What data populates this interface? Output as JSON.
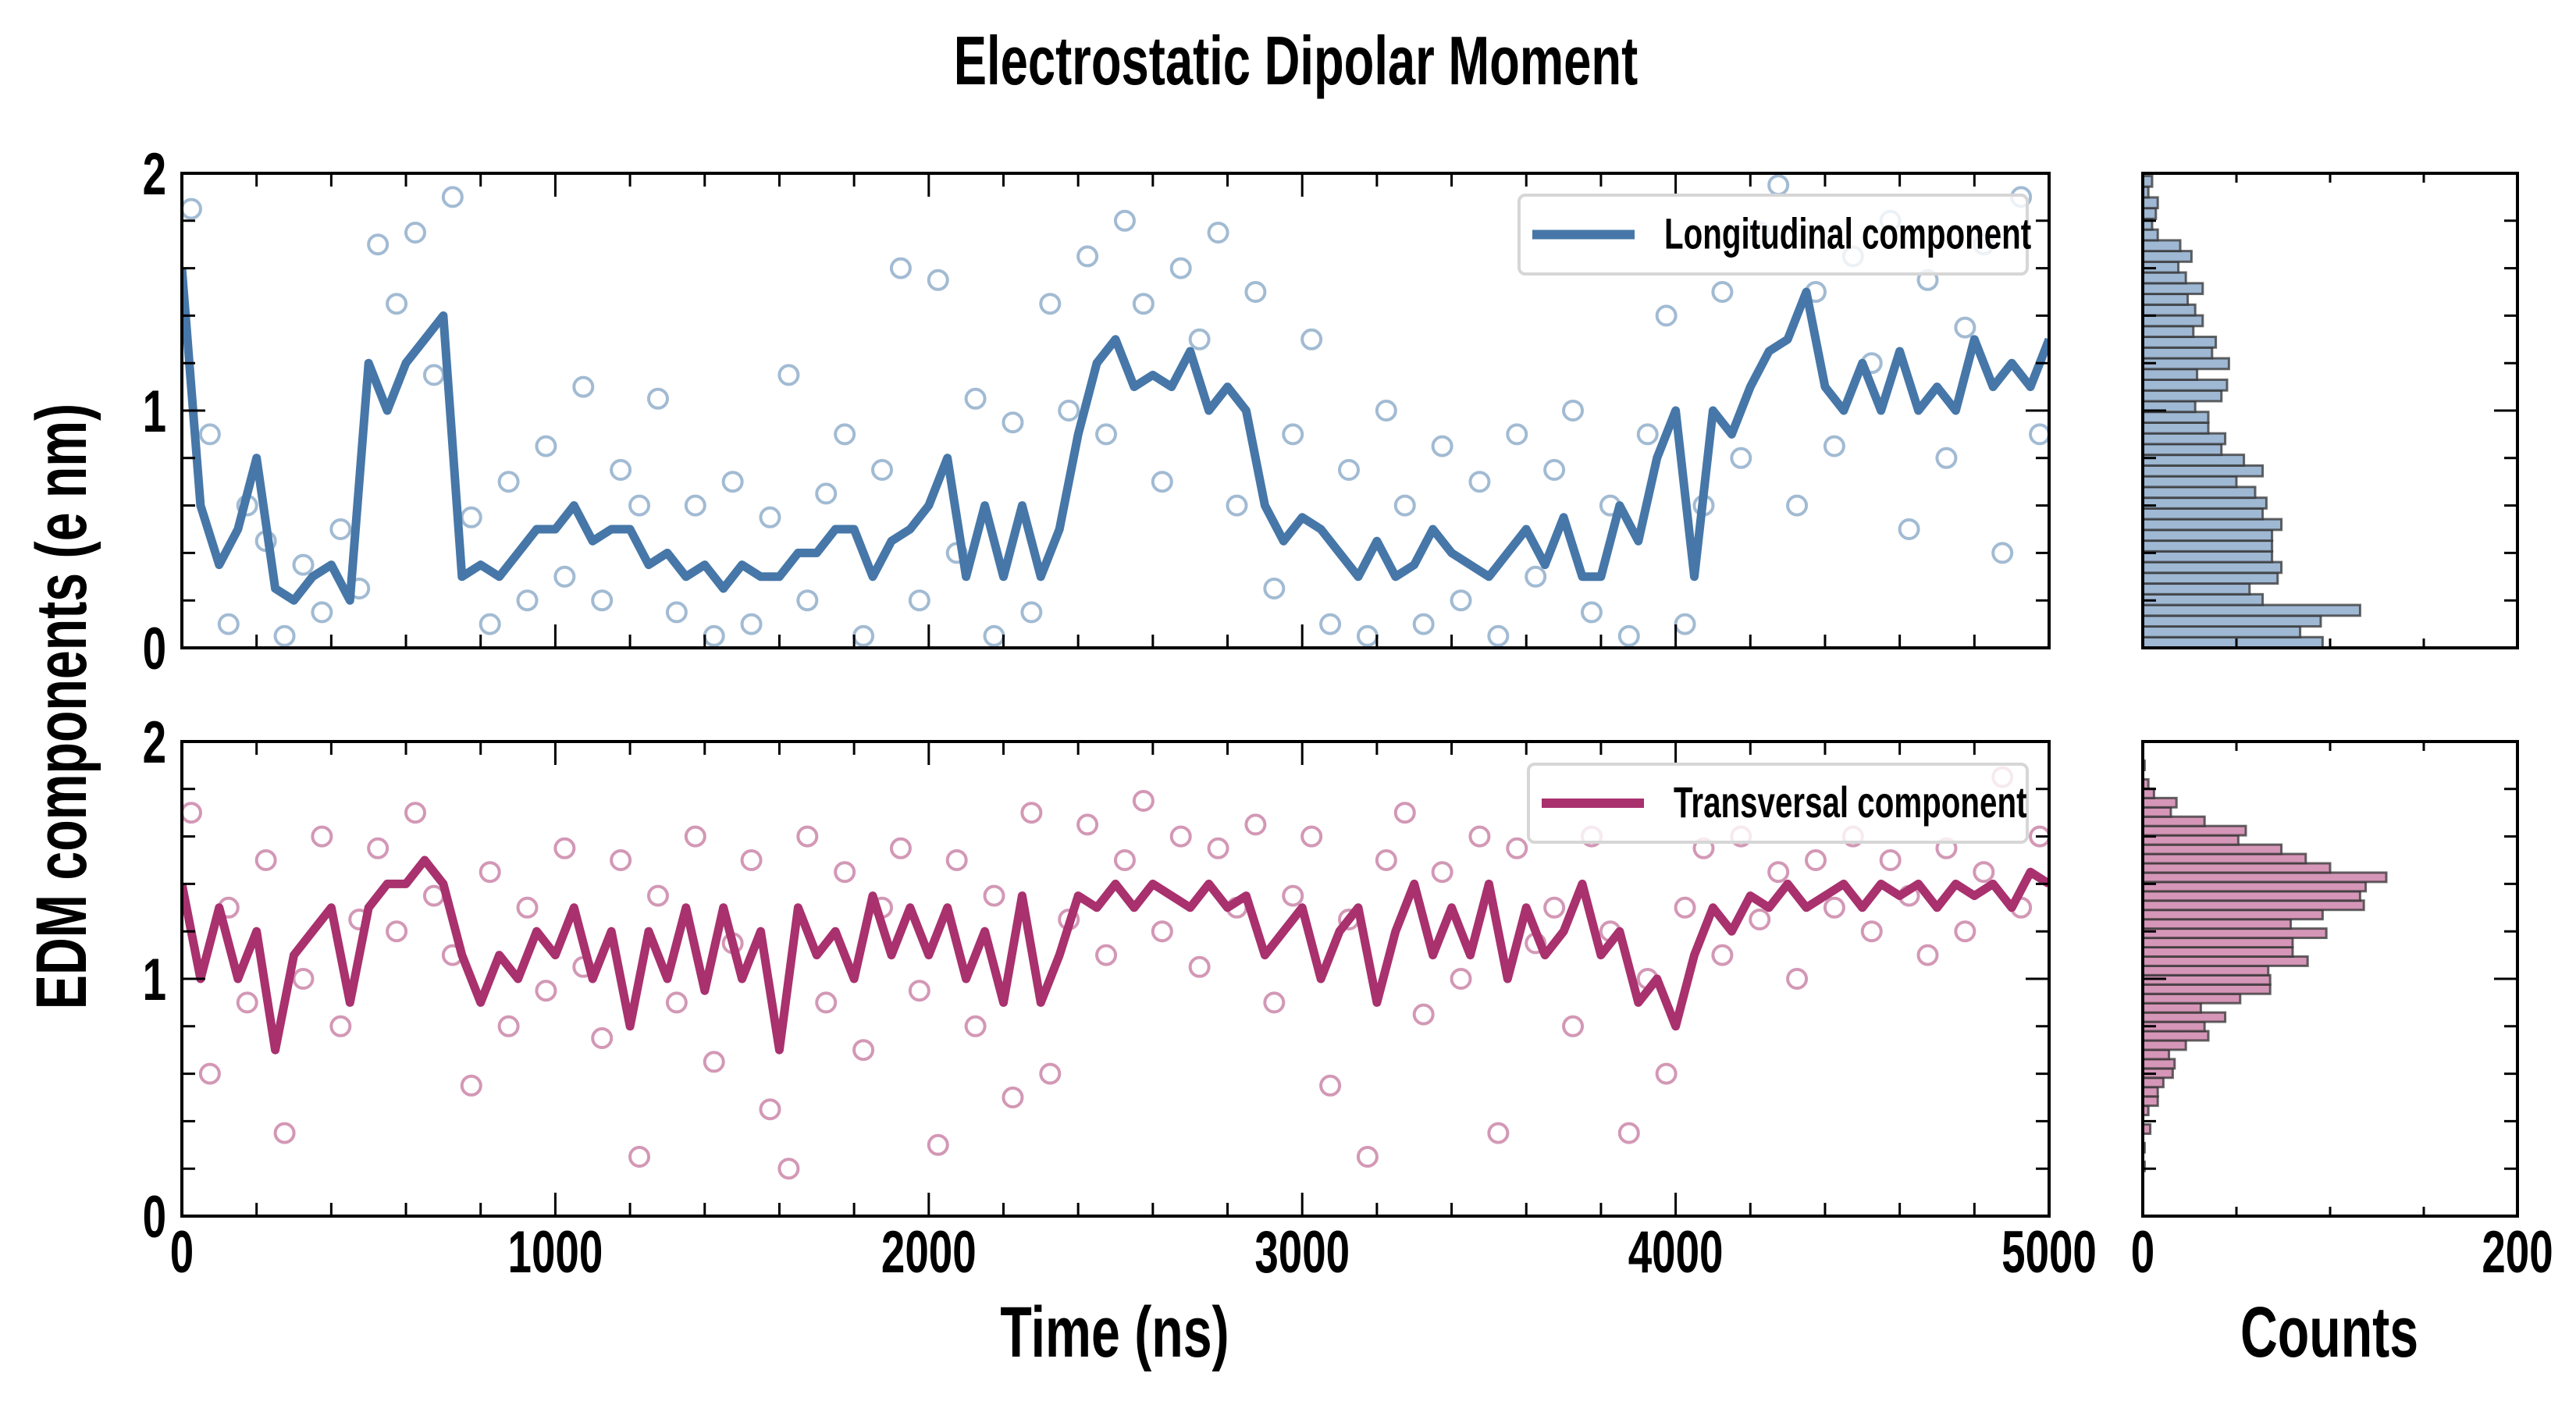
{
  "chart_data": [
    {
      "type": "scatter+line",
      "title": "Electrostatic Dipolar Moment",
      "xlabel": "Time (ns)",
      "ylabel": "EDM components (e nm)",
      "xlim": [
        0,
        5000
      ],
      "ylim": [
        0,
        2
      ],
      "x_ticks": [
        0,
        1000,
        2000,
        3000,
        4000,
        5000
      ],
      "x_tick_labels": [
        "0",
        "1000",
        "2000",
        "3000",
        "4000",
        "5000"
      ],
      "y_ticks": [
        0,
        1,
        2
      ],
      "y_tick_labels": [
        "0",
        "1",
        "2"
      ],
      "panels": [
        {
          "name": "Longitudinal component",
          "legend": "Longitudinal component",
          "legend_position": "top-right",
          "color": "#4677a8",
          "line_x_step": 50,
          "line_y": [
            1.6,
            0.6,
            0.35,
            0.5,
            0.8,
            0.25,
            0.2,
            0.3,
            0.35,
            0.2,
            1.2,
            1.0,
            1.2,
            1.3,
            1.4,
            0.3,
            0.35,
            0.3,
            0.4,
            0.5,
            0.5,
            0.6,
            0.45,
            0.5,
            0.5,
            0.35,
            0.4,
            0.3,
            0.35,
            0.25,
            0.35,
            0.3,
            0.3,
            0.4,
            0.4,
            0.5,
            0.5,
            0.3,
            0.45,
            0.5,
            0.6,
            0.8,
            0.3,
            0.6,
            0.3,
            0.6,
            0.3,
            0.5,
            0.9,
            1.2,
            1.3,
            1.1,
            1.15,
            1.1,
            1.25,
            1.0,
            1.1,
            1.0,
            0.6,
            0.45,
            0.55,
            0.5,
            0.4,
            0.3,
            0.45,
            0.3,
            0.35,
            0.5,
            0.4,
            0.35,
            0.3,
            0.4,
            0.5,
            0.35,
            0.55,
            0.3,
            0.3,
            0.6,
            0.45,
            0.8,
            1.0,
            0.3,
            1.0,
            0.9,
            1.1,
            1.25,
            1.3,
            1.5,
            1.1,
            1.0,
            1.2,
            1.0,
            1.25,
            1.0,
            1.1,
            1.0,
            1.3,
            1.1,
            1.2,
            1.1,
            1.3
          ],
          "scatter_x_start": 25,
          "scatter_x_step": 50,
          "scatter_y": [
            1.85,
            0.9,
            0.1,
            0.6,
            0.45,
            0.05,
            0.35,
            0.15,
            0.5,
            0.25,
            1.7,
            1.45,
            1.75,
            1.15,
            1.9,
            0.55,
            0.1,
            0.7,
            0.2,
            0.85,
            0.3,
            1.1,
            0.2,
            0.75,
            0.6,
            1.05,
            0.15,
            0.6,
            0.05,
            0.7,
            0.1,
            0.55,
            1.15,
            0.2,
            0.65,
            0.9,
            0.05,
            0.75,
            1.6,
            0.2,
            1.55,
            0.4,
            1.05,
            0.05,
            0.95,
            0.15,
            1.45,
            1.0,
            1.65,
            0.9,
            1.8,
            1.45,
            0.7,
            1.6,
            1.3,
            1.75,
            0.6,
            1.5,
            0.25,
            0.9,
            1.3,
            0.1,
            0.75,
            0.05,
            1.0,
            0.6,
            0.1,
            0.85,
            0.2,
            0.7,
            0.05,
            0.9,
            0.3,
            0.75,
            1.0,
            0.15,
            0.6,
            0.05,
            0.9,
            1.4,
            0.1,
            0.6,
            1.5,
            0.8,
            1.75,
            1.95,
            0.6,
            1.5,
            0.85,
            1.65,
            1.2,
            1.8,
            0.5,
            1.55,
            0.8,
            1.35,
            1.7,
            0.4,
            1.9,
            0.9
          ],
          "histogram": {
            "fill": "#9fb8d3",
            "bin_start": 0.0,
            "bin_width": 0.0452,
            "counts": [
              96,
              84,
              95,
              116,
              64,
              57,
              72,
              74,
              69,
              69,
              69,
              74,
              64,
              66,
              60,
              50,
              64,
              54,
              42,
              44,
              35,
              35,
              28,
              42,
              45,
              29,
              46,
              37,
              39,
              27,
              32,
              28,
              24,
              32,
              23,
              19,
              26,
              20,
              8,
              5,
              7,
              8,
              3,
              5
            ]
          }
        },
        {
          "name": "Transversal component",
          "legend": "Transversal component",
          "legend_position": "top-right",
          "color": "#a8316e",
          "line_x_step": 50,
          "line_y": [
            1.4,
            1.0,
            1.3,
            1.0,
            1.2,
            0.7,
            1.1,
            1.2,
            1.3,
            0.9,
            1.3,
            1.4,
            1.4,
            1.5,
            1.4,
            1.1,
            0.9,
            1.1,
            1.0,
            1.2,
            1.1,
            1.3,
            1.0,
            1.2,
            0.8,
            1.2,
            1.0,
            1.3,
            0.95,
            1.3,
            1.0,
            1.2,
            0.7,
            1.3,
            1.1,
            1.2,
            1.0,
            1.35,
            1.1,
            1.3,
            1.1,
            1.3,
            1.0,
            1.2,
            0.9,
            1.35,
            0.9,
            1.1,
            1.35,
            1.3,
            1.4,
            1.3,
            1.4,
            1.35,
            1.3,
            1.4,
            1.3,
            1.35,
            1.1,
            1.2,
            1.3,
            1.0,
            1.2,
            1.3,
            0.9,
            1.2,
            1.4,
            1.1,
            1.3,
            1.1,
            1.4,
            1.0,
            1.3,
            1.1,
            1.2,
            1.4,
            1.1,
            1.2,
            0.9,
            1.0,
            0.8,
            1.1,
            1.3,
            1.2,
            1.35,
            1.3,
            1.4,
            1.3,
            1.35,
            1.4,
            1.3,
            1.4,
            1.35,
            1.4,
            1.3,
            1.4,
            1.35,
            1.4,
            1.3,
            1.45,
            1.4
          ],
          "scatter_x_start": 25,
          "scatter_x_step": 50,
          "scatter_y": [
            1.7,
            0.6,
            1.3,
            0.9,
            1.5,
            0.35,
            1.0,
            1.6,
            0.8,
            1.25,
            1.55,
            1.2,
            1.7,
            1.35,
            1.1,
            0.55,
            1.45,
            0.8,
            1.3,
            0.95,
            1.55,
            1.05,
            0.75,
            1.5,
            0.25,
            1.35,
            0.9,
            1.6,
            0.65,
            1.15,
            1.5,
            0.45,
            0.2,
            1.6,
            0.9,
            1.45,
            0.7,
            1.3,
            1.55,
            0.95,
            0.3,
            1.5,
            0.8,
            1.35,
            0.5,
            1.7,
            0.6,
            1.25,
            1.65,
            1.1,
            1.5,
            1.75,
            1.2,
            1.6,
            1.05,
            1.55,
            1.3,
            1.65,
            0.9,
            1.35,
            1.6,
            0.55,
            1.25,
            0.25,
            1.5,
            1.7,
            0.85,
            1.45,
            1.0,
            1.6,
            0.35,
            1.55,
            1.15,
            1.3,
            0.8,
            1.6,
            1.2,
            0.35,
            1.0,
            0.6,
            1.3,
            1.55,
            1.1,
            1.6,
            1.25,
            1.45,
            1.0,
            1.5,
            1.3,
            1.6,
            1.2,
            1.5,
            1.35,
            1.1,
            1.55,
            1.2,
            1.45,
            1.85,
            1.3,
            1.6
          ],
          "histogram": {
            "fill": "#d596b8",
            "bin_start": 0.19,
            "bin_width": 0.0393,
            "counts": [
              1,
              0,
              1,
              0,
              4,
              0,
              3,
              8,
              8,
              11,
              16,
              17,
              14,
              23,
              35,
              33,
              44,
              31,
              52,
              68,
              68,
              67,
              88,
              80,
              80,
              98,
              79,
              96,
              118,
              116,
              119,
              130,
              100,
              87,
              74,
              51,
              55,
              33,
              15,
              18,
              6,
              3,
              0,
              1
            ]
          }
        }
      ],
      "histogram_axis": {
        "xlabel": "Counts",
        "xlim": [
          0,
          200
        ],
        "x_ticks": [
          0,
          200
        ],
        "x_tick_labels": [
          "0",
          "200"
        ],
        "edge_color": "#333333"
      }
    }
  ]
}
